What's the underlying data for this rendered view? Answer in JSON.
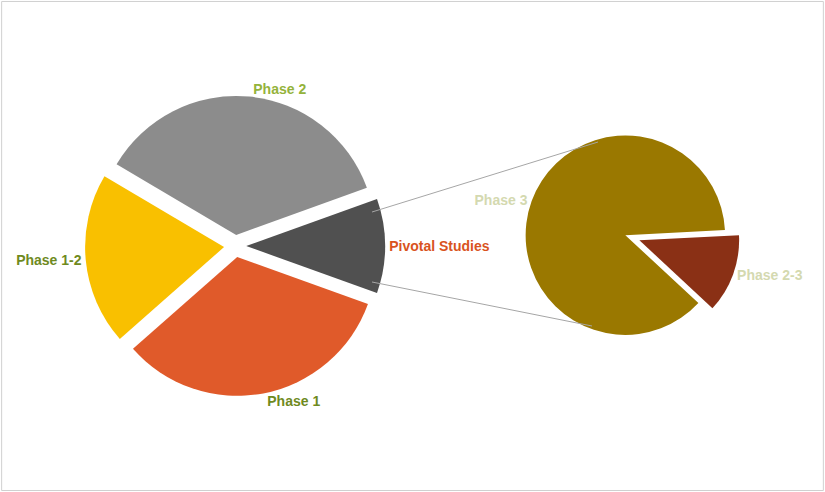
{
  "chart_data": [
    {
      "type": "pie",
      "categories": [
        "Phase 1",
        "Phase 1-2",
        "Phase 2",
        "Pivotal Studies"
      ],
      "values": [
        33,
        20,
        36,
        11
      ],
      "colors": [
        "#e05a2a",
        "#f9c000",
        "#8c8c8c",
        "#505050"
      ]
    },
    {
      "type": "pie",
      "categories": [
        "Phase 3",
        "Phase 2-3"
      ],
      "values": [
        9.6,
        1.4
      ],
      "colors": [
        "#9a7800",
        "#8a3015"
      ]
    }
  ]
}
